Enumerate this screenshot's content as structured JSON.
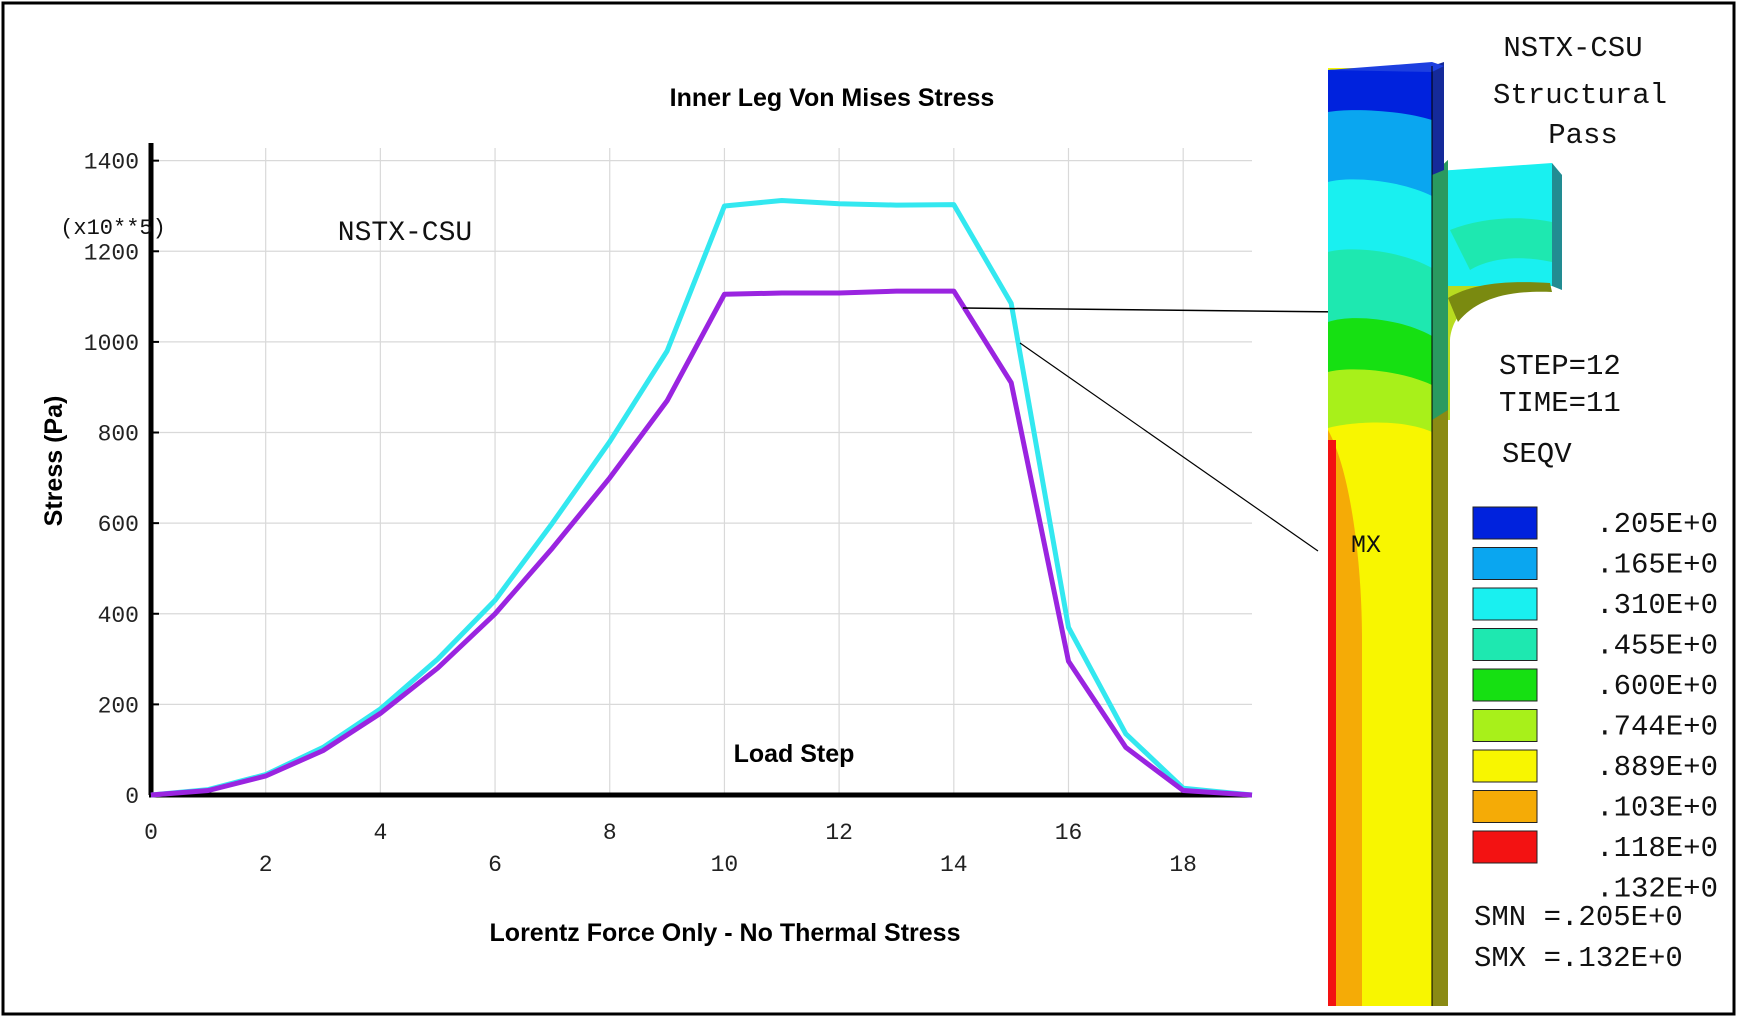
{
  "chart_data": {
    "type": "line",
    "title": "Inner Leg Von Mises Stress",
    "subtitle": "Lorentz Force Only - No Thermal Stress",
    "annotation": "NSTX-CSU",
    "xlabel": "Load Step",
    "ylabel": "Stress (Pa)",
    "y_multiplier_label": "(x10**5)",
    "xlim": [
      0,
      19.2
    ],
    "ylim": [
      0,
      1450
    ],
    "x_ticks_top": [
      "0",
      "4",
      "8",
      "12",
      "16"
    ],
    "x_ticks_top_values": [
      0,
      4,
      8,
      12,
      16
    ],
    "x_ticks_bottom": [
      "2",
      "6",
      "10",
      "14",
      "18"
    ],
    "x_ticks_bottom_values": [
      2,
      6,
      10,
      14,
      18
    ],
    "y_ticks": [
      "0",
      "200",
      "400",
      "600",
      "800",
      "1000",
      "1200",
      "1400"
    ],
    "y_ticks_values": [
      0,
      200,
      400,
      600,
      800,
      1000,
      1200,
      1400
    ],
    "grid": true,
    "series": [
      {
        "color": "#33e8f0",
        "x": [
          0,
          1,
          2,
          3,
          4,
          5,
          6,
          7,
          8,
          9,
          10,
          11,
          12,
          13,
          14,
          15,
          16,
          17,
          18,
          19.2
        ],
        "y": [
          0,
          12,
          45,
          105,
          190,
          300,
          430,
          600,
          780,
          980,
          1300,
          1312,
          1305,
          1302,
          1303,
          1085,
          370,
          135,
          15,
          0
        ]
      },
      {
        "color": "#9a24e0",
        "x": [
          0,
          1,
          2,
          3,
          4,
          5,
          6,
          7,
          8,
          9,
          10,
          11,
          12,
          13,
          14,
          15,
          16,
          17,
          18,
          19.2
        ],
        "y": [
          0,
          10,
          42,
          98,
          180,
          280,
          400,
          545,
          700,
          870,
          1105,
          1108,
          1108,
          1112,
          1112,
          910,
          295,
          105,
          10,
          0
        ]
      }
    ]
  },
  "contour_panel": {
    "title_line1": "NSTX-CSU",
    "title_line2": "Structural",
    "title_line3": "Pass",
    "step": "STEP=12",
    "time": "TIME=11",
    "quantity": "SEQV",
    "max_marker": "MX",
    "legend": [
      {
        "label": ".205E+0",
        "color": "#0022dd"
      },
      {
        "label": ".165E+0",
        "color": "#0aa6f0"
      },
      {
        "label": ".310E+0",
        "color": "#19f0f0"
      },
      {
        "label": ".455E+0",
        "color": "#1ee8b0"
      },
      {
        "label": ".600E+0",
        "color": "#16e012"
      },
      {
        "label": ".744E+0",
        "color": "#a8f01a"
      },
      {
        "label": ".889E+0",
        "color": "#f8f600"
      },
      {
        "label": ".103E+0",
        "color": "#f5ab06"
      },
      {
        "label": ".118E+0",
        "color": "#f31212"
      },
      {
        "label": ".132E+0",
        "color": ""
      }
    ],
    "smn": "SMN =.205E+0",
    "smx": "SMX =.132E+0"
  }
}
